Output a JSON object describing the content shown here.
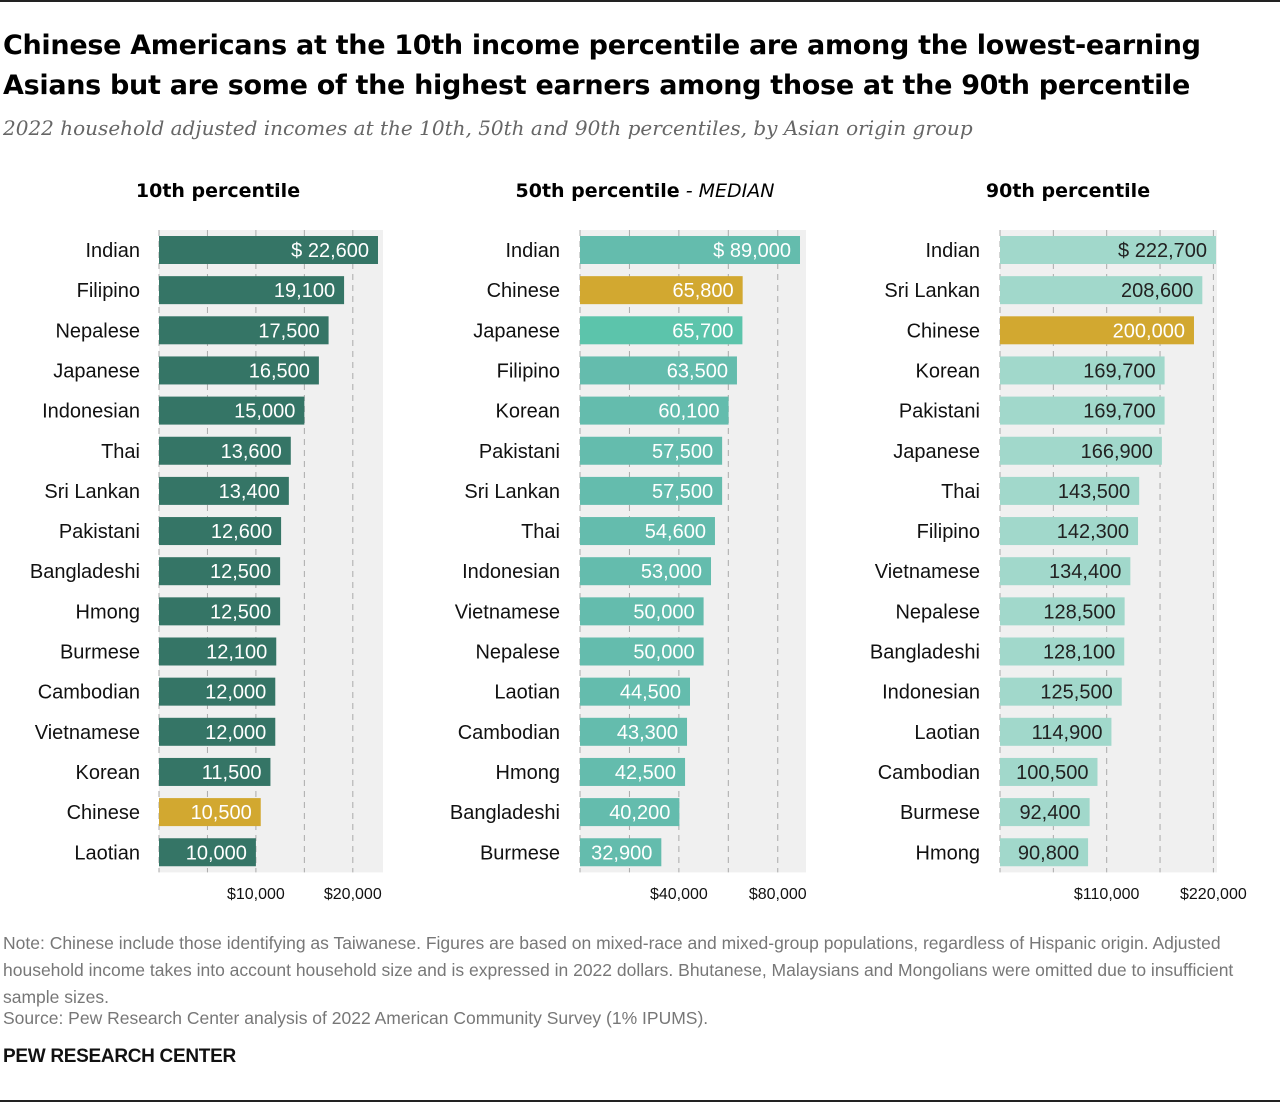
{
  "title": "Chinese Americans at the 10th income percentile are among the lowest-earning Asians but are some of the highest earners among those at the 90th percentile",
  "subtitle": "2022 household adjusted incomes at the 10th, 50th and 90th percentiles, by Asian origin group",
  "note": "Note: Chinese include those identifying as Taiwanese. Figures are based on mixed-race and mixed-group populations, regardless of Hispanic origin. Adjusted household income takes into account household size and is expressed in 2022 dollars. Bhutanese, Malaysians and Mongolians were omitted due to insufficient sample sizes.",
  "source": "Source: Pew Research Center analysis of 2022 American Community Survey (1% IPUMS).",
  "logo": "PEW RESEARCH CENTER",
  "colors": {
    "p10": "#357566",
    "p50": "#64bcad",
    "p50_japanese": "#5cc4ab",
    "p90": "#a1d8cb",
    "highlight": "#d2a830",
    "plot_bg": "#f0f0f0"
  },
  "chart_data": [
    {
      "type": "bar",
      "title": "10th percentile",
      "title_suffix": "",
      "categories": [
        "Indian",
        "Filipino",
        "Nepalese",
        "Japanese",
        "Indonesian",
        "Thai",
        "Sri Lankan",
        "Pakistani",
        "Bangladeshi",
        "Hmong",
        "Burmese",
        "Cambodian",
        "Vietnamese",
        "Korean",
        "Chinese",
        "Laotian"
      ],
      "values": [
        22600,
        19100,
        17500,
        16500,
        15000,
        13600,
        13400,
        12600,
        12500,
        12500,
        12100,
        12000,
        12000,
        11500,
        10500,
        10000
      ],
      "labels": [
        "$ 22,600",
        "19,100",
        "17,500",
        "16,500",
        "15,000",
        "13,600",
        "13,400",
        "12,600",
        "12,500",
        "12,500",
        "12,100",
        "12,000",
        "12,000",
        "11,500",
        "10,500",
        "10,000"
      ],
      "xlim": [
        0,
        23000
      ],
      "grid_step": 5000,
      "ticks": [
        {
          "value": 10000,
          "label": "$10,000"
        },
        {
          "value": 20000,
          "label": "$20,000"
        }
      ],
      "highlight": [
        "Chinese"
      ]
    },
    {
      "type": "bar",
      "title": "50th percentile",
      "title_suffix": " - MEDIAN",
      "categories": [
        "Indian",
        "Chinese",
        "Japanese",
        "Filipino",
        "Korean",
        "Pakistani",
        "Sri Lankan",
        "Thai",
        "Indonesian",
        "Vietnamese",
        "Nepalese",
        "Laotian",
        "Cambodian",
        "Hmong",
        "Bangladeshi",
        "Burmese"
      ],
      "values": [
        89000,
        65800,
        65700,
        63500,
        60100,
        57500,
        57500,
        54600,
        53000,
        50000,
        50000,
        44500,
        43300,
        42500,
        40200,
        32900
      ],
      "labels": [
        "$ 89,000",
        "65,800",
        "65,700",
        "63,500",
        "60,100",
        "57,500",
        "57,500",
        "54,600",
        "53,000",
        "50,000",
        "50,000",
        "44,500",
        "43,300",
        "42,500",
        "40,200",
        "32,900"
      ],
      "xlim": [
        0,
        91000
      ],
      "grid_step": 20000,
      "ticks": [
        {
          "value": 40000,
          "label": "$40,000"
        },
        {
          "value": 80000,
          "label": "$80,000"
        }
      ],
      "highlight": [
        "Chinese"
      ]
    },
    {
      "type": "bar",
      "title": "90th percentile",
      "title_suffix": "",
      "categories": [
        "Indian",
        "Sri Lankan",
        "Chinese",
        "Korean",
        "Pakistani",
        "Japanese",
        "Thai",
        "Filipino",
        "Vietnamese",
        "Nepalese",
        "Bangladeshi",
        "Indonesian",
        "Laotian",
        "Cambodian",
        "Burmese",
        "Hmong"
      ],
      "values": [
        222700,
        208600,
        200000,
        169700,
        169700,
        166900,
        143500,
        142300,
        134400,
        128500,
        128100,
        125500,
        114900,
        100500,
        92400,
        90800
      ],
      "labels": [
        "$ 222,700",
        "208,600",
        "200,000",
        "169,700",
        "169,700",
        "166,900",
        "143,500",
        "142,300",
        "134,400",
        "128,500",
        "128,100",
        "125,500",
        "114,900",
        "100,500",
        "92,400",
        "90,800"
      ],
      "xlim": [
        0,
        222700
      ],
      "grid_step": 55000,
      "ticks": [
        {
          "value": 110000,
          "label": "$110,000"
        },
        {
          "value": 220000,
          "label": "$220,000"
        }
      ],
      "highlight": [
        "Chinese"
      ]
    }
  ]
}
